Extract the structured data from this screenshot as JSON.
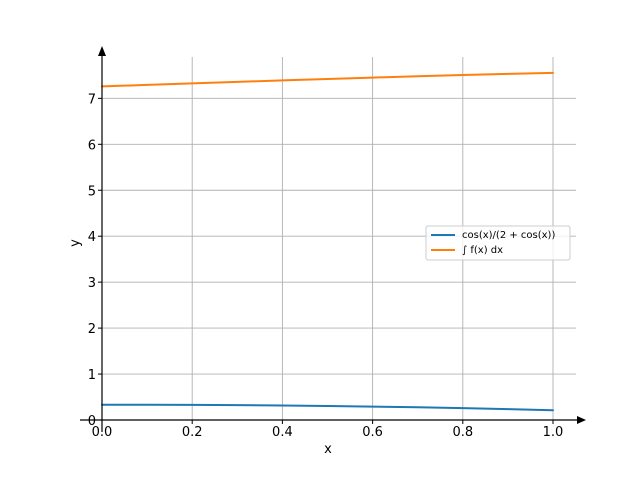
{
  "chart_data": {
    "type": "line",
    "title": "",
    "xlabel": "x",
    "ylabel": "y",
    "xlim": [
      0.0,
      1.0
    ],
    "ylim": [
      0,
      7.9
    ],
    "x_ticks": [
      "0.0",
      "0.2",
      "0.4",
      "0.6",
      "0.8",
      "1.0"
    ],
    "y_ticks": [
      "0",
      "1",
      "2",
      "3",
      "4",
      "5",
      "6",
      "7"
    ],
    "grid": true,
    "legend_position": "center-right",
    "x": [
      0.0,
      0.1,
      0.2,
      0.3,
      0.4,
      0.5,
      0.6,
      0.7,
      0.8,
      0.9,
      1.0
    ],
    "series": [
      {
        "name": "cos(x)/(2 + cos(x))",
        "color": "#1f77b4",
        "values": [
          0.333,
          0.332,
          0.329,
          0.323,
          0.315,
          0.305,
          0.292,
          0.277,
          0.258,
          0.237,
          0.213
        ]
      },
      {
        "name": "∫ f(x) dx",
        "color": "#ff7f0e",
        "values": [
          7.26,
          7.293,
          7.326,
          7.359,
          7.391,
          7.422,
          7.452,
          7.481,
          7.508,
          7.533,
          7.555
        ]
      }
    ]
  }
}
